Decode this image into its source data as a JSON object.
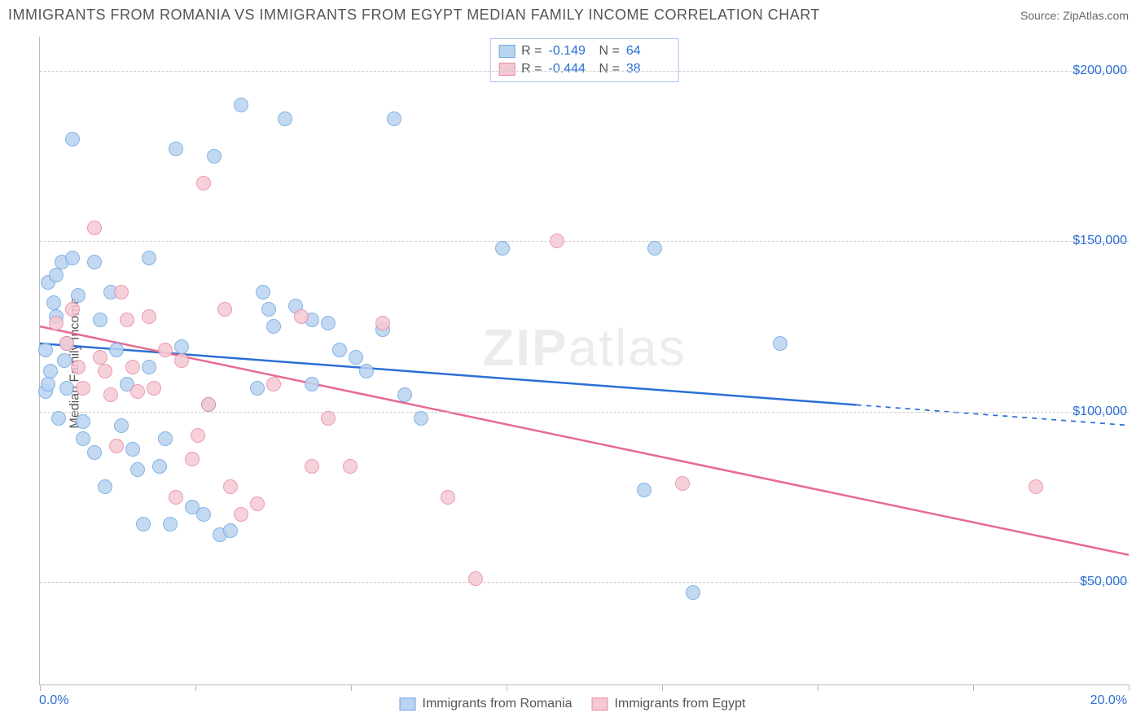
{
  "title": "IMMIGRANTS FROM ROMANIA VS IMMIGRANTS FROM EGYPT MEDIAN FAMILY INCOME CORRELATION CHART",
  "source": "Source: ZipAtlas.com",
  "watermark": "ZIPatlas",
  "ylabel": "Median Family Income",
  "chart": {
    "type": "scatter",
    "xlim": [
      0,
      20
    ],
    "ylim": [
      20000,
      210000
    ],
    "xtick_labels": [
      {
        "pos": 0,
        "text": "0.0%"
      },
      {
        "pos": 20,
        "text": "20.0%"
      }
    ],
    "ytick_labels": [
      {
        "val": 50000,
        "text": "$50,000"
      },
      {
        "val": 100000,
        "text": "$100,000"
      },
      {
        "val": 150000,
        "text": "$150,000"
      },
      {
        "val": 200000,
        "text": "$200,000"
      }
    ],
    "gridlines_y": [
      50000,
      100000,
      150000,
      200000
    ],
    "vticks_x": [
      0,
      2.86,
      5.71,
      8.57,
      11.43,
      14.29,
      17.14,
      20
    ],
    "background_color": "#ffffff",
    "grid_color": "#cccccc",
    "axis_color": "#bbbbbb",
    "label_color": "#2b6fd6",
    "point_radius": 9,
    "series": [
      {
        "name": "Immigrants from Romania",
        "color_fill": "#b9d3f0",
        "color_stroke": "#6fa7e0",
        "r": -0.149,
        "n": 64,
        "trend": {
          "x0": 0,
          "y0": 120000,
          "x1": 15,
          "y1": 102000,
          "x2": 20,
          "y2": 96000,
          "color": "#2b6fd6",
          "width": 2.5
        },
        "points": [
          [
            0.1,
            118000
          ],
          [
            0.1,
            106000
          ],
          [
            0.15,
            138000
          ],
          [
            0.15,
            108000
          ],
          [
            0.2,
            112000
          ],
          [
            0.3,
            140000
          ],
          [
            0.3,
            128000
          ],
          [
            0.4,
            144000
          ],
          [
            0.5,
            120000
          ],
          [
            0.5,
            107000
          ],
          [
            0.6,
            180000
          ],
          [
            0.6,
            145000
          ],
          [
            0.7,
            134000
          ],
          [
            0.8,
            97000
          ],
          [
            0.8,
            92000
          ],
          [
            1.0,
            144000
          ],
          [
            1.0,
            88000
          ],
          [
            1.1,
            127000
          ],
          [
            1.2,
            78000
          ],
          [
            1.3,
            135000
          ],
          [
            1.4,
            118000
          ],
          [
            1.5,
            96000
          ],
          [
            1.6,
            108000
          ],
          [
            1.7,
            89000
          ],
          [
            1.8,
            83000
          ],
          [
            1.9,
            67000
          ],
          [
            2.0,
            145000
          ],
          [
            2.0,
            113000
          ],
          [
            2.2,
            84000
          ],
          [
            2.3,
            92000
          ],
          [
            2.4,
            67000
          ],
          [
            2.5,
            177000
          ],
          [
            2.6,
            119000
          ],
          [
            2.8,
            72000
          ],
          [
            3.0,
            70000
          ],
          [
            3.1,
            102000
          ],
          [
            3.2,
            175000
          ],
          [
            3.3,
            64000
          ],
          [
            3.5,
            65000
          ],
          [
            3.7,
            190000
          ],
          [
            4.0,
            107000
          ],
          [
            4.1,
            135000
          ],
          [
            4.2,
            130000
          ],
          [
            4.3,
            125000
          ],
          [
            4.5,
            186000
          ],
          [
            4.7,
            131000
          ],
          [
            5.0,
            127000
          ],
          [
            5.0,
            108000
          ],
          [
            5.3,
            126000
          ],
          [
            5.5,
            118000
          ],
          [
            5.8,
            116000
          ],
          [
            6.0,
            112000
          ],
          [
            6.3,
            124000
          ],
          [
            6.5,
            186000
          ],
          [
            6.7,
            105000
          ],
          [
            7.0,
            98000
          ],
          [
            8.5,
            148000
          ],
          [
            11.1,
            77000
          ],
          [
            11.3,
            148000
          ],
          [
            12.0,
            47000
          ],
          [
            13.6,
            120000
          ],
          [
            0.25,
            132000
          ],
          [
            0.35,
            98000
          ],
          [
            0.45,
            115000
          ]
        ]
      },
      {
        "name": "Immigrants from Egypt",
        "color_fill": "#f5c9d4",
        "color_stroke": "#e88ba5",
        "r": -0.444,
        "n": 38,
        "trend": {
          "x0": 0,
          "y0": 125000,
          "x1": 20,
          "y1": 58000,
          "color": "#e76b8f",
          "width": 2.5
        },
        "points": [
          [
            0.3,
            126000
          ],
          [
            0.5,
            120000
          ],
          [
            0.6,
            130000
          ],
          [
            0.7,
            113000
          ],
          [
            0.8,
            107000
          ],
          [
            1.0,
            154000
          ],
          [
            1.1,
            116000
          ],
          [
            1.2,
            112000
          ],
          [
            1.3,
            105000
          ],
          [
            1.4,
            90000
          ],
          [
            1.5,
            135000
          ],
          [
            1.6,
            127000
          ],
          [
            1.7,
            113000
          ],
          [
            1.8,
            106000
          ],
          [
            2.0,
            128000
          ],
          [
            2.1,
            107000
          ],
          [
            2.3,
            118000
          ],
          [
            2.5,
            75000
          ],
          [
            2.6,
            115000
          ],
          [
            2.8,
            86000
          ],
          [
            3.0,
            167000
          ],
          [
            3.1,
            102000
          ],
          [
            3.4,
            130000
          ],
          [
            3.5,
            78000
          ],
          [
            3.7,
            70000
          ],
          [
            4.0,
            73000
          ],
          [
            4.3,
            108000
          ],
          [
            4.8,
            128000
          ],
          [
            5.0,
            84000
          ],
          [
            5.3,
            98000
          ],
          [
            5.7,
            84000
          ],
          [
            6.3,
            126000
          ],
          [
            7.5,
            75000
          ],
          [
            8.0,
            51000
          ],
          [
            9.5,
            150000
          ],
          [
            11.8,
            79000
          ],
          [
            18.3,
            78000
          ],
          [
            2.9,
            93000
          ]
        ]
      }
    ]
  },
  "correlation_box": {
    "rows": [
      {
        "swatch_fill": "#b9d3f0",
        "swatch_stroke": "#6fa7e0",
        "r_label": "R =",
        "r_value": "-0.149",
        "n_label": "N =",
        "n_value": "64"
      },
      {
        "swatch_fill": "#f5c9d4",
        "swatch_stroke": "#e88ba5",
        "r_label": "R =",
        "r_value": "-0.444",
        "n_label": "N =",
        "n_value": "38"
      }
    ]
  },
  "bottom_legend": [
    {
      "swatch_fill": "#b9d3f0",
      "swatch_stroke": "#6fa7e0",
      "label": "Immigrants from Romania"
    },
    {
      "swatch_fill": "#f5c9d4",
      "swatch_stroke": "#e88ba5",
      "label": "Immigrants from Egypt"
    }
  ]
}
